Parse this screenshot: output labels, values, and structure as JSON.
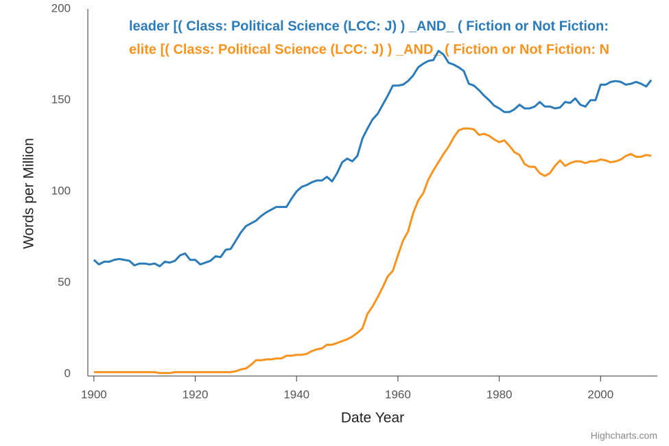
{
  "chart_data": {
    "type": "line",
    "xlabel": "Date Year",
    "ylabel": "Words per Million",
    "credit": "Highcharts.com",
    "x": [
      1900,
      1901,
      1902,
      1903,
      1904,
      1905,
      1906,
      1907,
      1908,
      1909,
      1910,
      1911,
      1912,
      1913,
      1914,
      1915,
      1916,
      1917,
      1918,
      1919,
      1920,
      1921,
      1922,
      1923,
      1924,
      1925,
      1926,
      1927,
      1928,
      1929,
      1930,
      1931,
      1932,
      1933,
      1934,
      1935,
      1936,
      1937,
      1938,
      1939,
      1940,
      1941,
      1942,
      1943,
      1944,
      1945,
      1946,
      1947,
      1948,
      1949,
      1950,
      1951,
      1952,
      1953,
      1954,
      1955,
      1956,
      1957,
      1958,
      1959,
      1960,
      1961,
      1962,
      1963,
      1964,
      1965,
      1966,
      1967,
      1968,
      1969,
      1970,
      1971,
      1972,
      1973,
      1974,
      1975,
      1976,
      1977,
      1978,
      1979,
      1980,
      1981,
      1982,
      1983,
      1984,
      1985,
      1986,
      1987,
      1988,
      1989,
      1990,
      1991,
      1992,
      1993,
      1994,
      1995,
      1996,
      1997,
      1998,
      1999,
      2000,
      2001,
      2002,
      2003,
      2004,
      2005,
      2006,
      2007,
      2008,
      2009,
      2010
    ],
    "series": [
      {
        "name": "leader [( Class: Political Science (LCC: J) ) _AND_ ( Fiction or Not Fiction:",
        "color": "#2b7bb9",
        "values": [
          62.5,
          60,
          61.5,
          61.5,
          62.5,
          63,
          62.5,
          62,
          59.5,
          60.5,
          60.5,
          60,
          60.5,
          59,
          61.5,
          61,
          62,
          65,
          66,
          62.5,
          62.5,
          60,
          61,
          62,
          64.5,
          64,
          68,
          68.5,
          73,
          77.5,
          81,
          82.5,
          84,
          86.5,
          88.5,
          90,
          91.5,
          91.5,
          91.5,
          96,
          100,
          102.5,
          103.5,
          105,
          106,
          106,
          108,
          105.5,
          110,
          116,
          118,
          116.5,
          119.5,
          129,
          134.5,
          139.5,
          142.5,
          147.5,
          152.5,
          158,
          158,
          158.5,
          160.5,
          163.5,
          168,
          170,
          171.5,
          172,
          177,
          175,
          170.5,
          169.5,
          168,
          166,
          159,
          158,
          155.5,
          152.5,
          150,
          147,
          145.5,
          143.5,
          143.5,
          145,
          147.5,
          145.5,
          145.5,
          146.5,
          149,
          146.5,
          146.5,
          145.5,
          146,
          149,
          148.5,
          151,
          147.5,
          146.5,
          150,
          150,
          158.5,
          158.5,
          160,
          160.5,
          160,
          158.5,
          159,
          160,
          159,
          157.5,
          161
        ]
      },
      {
        "name": "elite [( Class: Political Science (LCC: J) ) _AND_ ( Fiction or Not Fiction: N",
        "color": "#f7931e",
        "values": [
          1,
          1,
          1,
          1,
          1,
          1,
          1,
          1,
          1,
          1,
          1,
          1,
          1,
          0.5,
          0.5,
          0.5,
          1,
          1,
          1,
          1,
          1,
          1,
          1,
          1,
          1,
          1,
          1,
          1,
          1.5,
          2.5,
          3,
          5,
          7.5,
          7.5,
          8,
          8,
          8.5,
          8.5,
          10,
          10,
          10.5,
          10.5,
          11,
          12.5,
          13.5,
          14,
          16,
          16,
          17,
          18,
          19,
          20.5,
          22.5,
          25,
          33,
          37,
          42,
          47.5,
          53.5,
          56.5,
          65,
          73,
          78,
          88,
          95,
          99,
          106.5,
          111.5,
          116,
          120.5,
          124.5,
          129.5,
          133.5,
          134.5,
          134.5,
          134,
          131,
          131.5,
          130.5,
          128.5,
          127,
          128,
          125,
          121.5,
          120,
          115,
          113.5,
          113.5,
          110,
          108.5,
          110,
          114,
          117,
          114,
          115.5,
          116.5,
          116.5,
          115.5,
          116.5,
          116.5,
          117.5,
          117,
          116,
          116.5,
          117.5,
          119.5,
          120.5,
          119,
          119,
          120,
          119.5
        ]
      }
    ],
    "xlim": [
      1898.8,
      2011.2
    ],
    "xticks": [
      1900,
      1920,
      1940,
      1960,
      1980,
      2000
    ],
    "ylim": [
      0,
      200
    ],
    "yticks": [
      0,
      50,
      100,
      150,
      200
    ],
    "grid": false
  }
}
